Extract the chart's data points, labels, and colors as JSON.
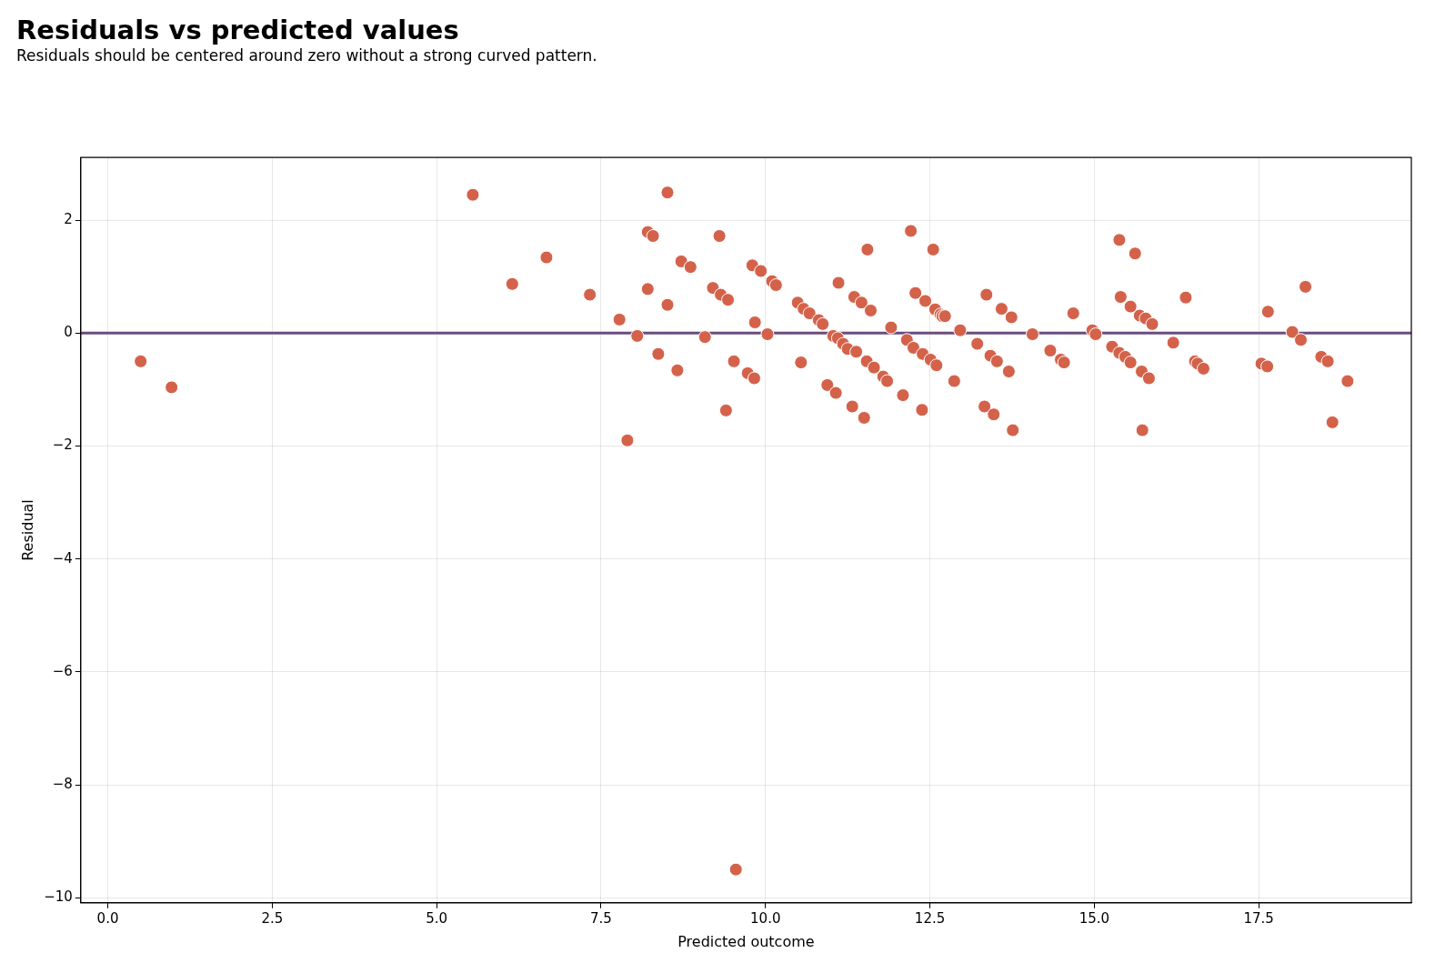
{
  "chart_data": {
    "type": "scatter",
    "title": "Residuals vs predicted values",
    "subtitle": "Residuals should be centered around zero without a strong curved pattern.",
    "xlabel": "Predicted outcome",
    "ylabel": "Residual",
    "x": [
      0.5,
      0.97,
      5.55,
      6.15,
      6.67,
      7.33,
      7.78,
      7.9,
      8.05,
      8.21,
      8.29,
      8.21,
      8.37,
      8.51,
      8.51,
      8.66,
      8.72,
      8.86,
      9.08,
      9.2,
      9.3,
      9.32,
      9.43,
      9.4,
      9.52,
      9.55,
      9.73,
      9.8,
      9.83,
      9.84,
      9.93,
      10.03,
      10.1,
      10.16,
      10.49,
      10.54,
      10.58,
      10.67,
      10.81,
      10.87,
      10.94,
      11.03,
      11.1,
      11.07,
      11.11,
      11.18,
      11.25,
      11.32,
      11.35,
      11.38,
      11.46,
      11.5,
      11.55,
      11.54,
      11.6,
      11.65,
      11.79,
      11.85,
      11.91,
      12.09,
      12.15,
      12.21,
      12.28,
      12.25,
      12.38,
      12.43,
      12.39,
      12.51,
      12.55,
      12.58,
      12.6,
      12.66,
      12.69,
      12.73,
      12.87,
      12.96,
      13.22,
      13.33,
      13.36,
      13.42,
      13.47,
      13.52,
      13.59,
      13.7,
      13.74,
      13.76,
      14.06,
      14.33,
      14.49,
      14.54,
      14.68,
      14.97,
      15.02,
      15.27,
      15.38,
      15.4,
      15.38,
      15.47,
      15.55,
      15.55,
      15.62,
      15.69,
      15.72,
      15.73,
      15.78,
      15.83,
      15.88,
      16.2,
      16.39,
      16.53,
      16.57,
      16.66,
      17.54,
      17.63,
      17.64,
      18.01,
      18.14,
      18.21,
      18.45,
      18.55,
      18.62,
      18.85
    ],
    "values": [
      -0.5,
      -0.96,
      2.45,
      0.87,
      1.34,
      0.68,
      0.24,
      -1.9,
      -0.05,
      1.79,
      1.72,
      0.78,
      -0.37,
      2.49,
      0.5,
      -0.66,
      1.27,
      1.17,
      -0.07,
      0.8,
      1.72,
      0.68,
      0.59,
      -1.37,
      -0.5,
      -9.5,
      -0.71,
      1.2,
      -0.8,
      0.19,
      1.1,
      -0.02,
      0.92,
      0.85,
      0.54,
      -0.52,
      0.43,
      0.35,
      0.23,
      0.16,
      -0.92,
      -0.05,
      -0.09,
      -1.06,
      0.89,
      -0.19,
      -0.28,
      -1.3,
      0.64,
      -0.33,
      0.54,
      -1.5,
      1.48,
      -0.5,
      0.4,
      -0.61,
      -0.77,
      -0.85,
      0.1,
      -1.1,
      -0.12,
      1.81,
      0.71,
      -0.26,
      -1.36,
      0.57,
      -0.37,
      -0.47,
      1.48,
      0.42,
      -0.57,
      0.33,
      0.3,
      0.3,
      -0.85,
      0.05,
      -0.19,
      -1.3,
      0.68,
      -0.4,
      -1.44,
      -0.5,
      0.43,
      -0.68,
      0.28,
      -1.72,
      -0.02,
      -0.31,
      -0.47,
      -0.52,
      0.35,
      0.05,
      -0.02,
      -0.24,
      1.65,
      0.64,
      -0.35,
      -0.42,
      0.47,
      -0.52,
      1.41,
      0.31,
      -0.68,
      -1.72,
      0.26,
      -0.8,
      0.16,
      -0.17,
      0.63,
      -0.5,
      -0.54,
      -0.63,
      -0.54,
      -0.59,
      0.38,
      0.02,
      -0.12,
      0.82,
      -0.42,
      -0.5,
      -1.58,
      -0.85
    ],
    "color": "#d4624a",
    "marker": "circle",
    "grid": true,
    "xlim": [
      -0.41,
      19.82
    ],
    "xticks": [
      {
        "value": 0,
        "label": "0.0"
      },
      {
        "value": 2.5,
        "label": "2.5"
      },
      {
        "value": 5,
        "label": "5.0"
      },
      {
        "value": 7.5,
        "label": "7.5"
      },
      {
        "value": 10,
        "label": "10.0"
      },
      {
        "value": 12.5,
        "label": "12.5"
      },
      {
        "value": 15,
        "label": "15.0"
      },
      {
        "value": 17.5,
        "label": "17.5"
      }
    ],
    "ylim": [
      -10.09,
      3.11
    ],
    "yticks": [
      {
        "value": -10,
        "label": "−10"
      },
      {
        "value": -8,
        "label": "−8"
      },
      {
        "value": -6,
        "label": "−6"
      },
      {
        "value": -4,
        "label": "−4"
      },
      {
        "value": -2,
        "label": "−2"
      },
      0,
      2
    ],
    "ref_lines": [
      {
        "axis": "y",
        "value": 0,
        "color": "#6a4c80"
      }
    ]
  }
}
